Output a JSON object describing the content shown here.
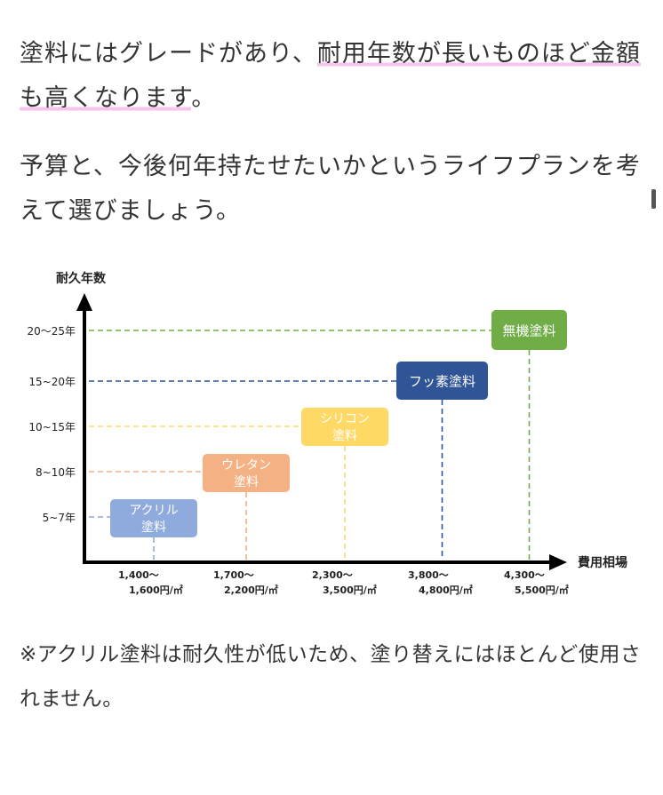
{
  "article": {
    "p1": {
      "pre": "塗料にはグレードがあり、",
      "highlight": "耐用年数が長いものほど金額も高くなります",
      "post": "。"
    },
    "p2": "予算と、今後何年持たせたいかというライフプランを考えて選びましょう。",
    "p3": "※アクリル塗料は耐久性が低いため、塗り替えにはほとんど使用されません。"
  },
  "colors": {
    "text": "#333333",
    "highlight": "#f7c4ee",
    "axis": "#000000"
  },
  "chart_data": {
    "type": "scatter",
    "ylabel": "耐久年数",
    "xlabel": "費用相場",
    "y_ticks": [
      "5~7年",
      "8~10年",
      "10~15年",
      "15~20年",
      "20〜25年"
    ],
    "x_ticks": [
      [
        "1,400〜",
        "1,600円/㎡"
      ],
      [
        "1,700〜",
        "2,200円/㎡"
      ],
      [
        "2,300〜",
        "3,500円/㎡"
      ],
      [
        "3,800〜",
        "4,800円/㎡"
      ],
      [
        "4,300〜",
        "5,500円/㎡"
      ]
    ],
    "grid": false,
    "points": [
      {
        "label": [
          "アクリル",
          "塗料"
        ],
        "cost": "1,400〜1,600円/㎡",
        "years": "5~7年",
        "color": "#8faadc"
      },
      {
        "label": [
          "ウレタン",
          "塗料"
        ],
        "cost": "1,700〜2,200円/㎡",
        "years": "8~10年",
        "color": "#f4b183"
      },
      {
        "label": [
          "シリコン",
          "塗料"
        ],
        "cost": "2,300〜3,500円/㎡",
        "years": "10~15年",
        "color": "#ffd966"
      },
      {
        "label": [
          "フッ素塗料"
        ],
        "cost": "3,800〜4,800円/㎡",
        "years": "15~20年",
        "color": "#2f5597"
      },
      {
        "label": [
          "無機塗料"
        ],
        "cost": "4,300〜5,500円/㎡",
        "years": "20〜25年",
        "color": "#70ad47"
      }
    ]
  }
}
